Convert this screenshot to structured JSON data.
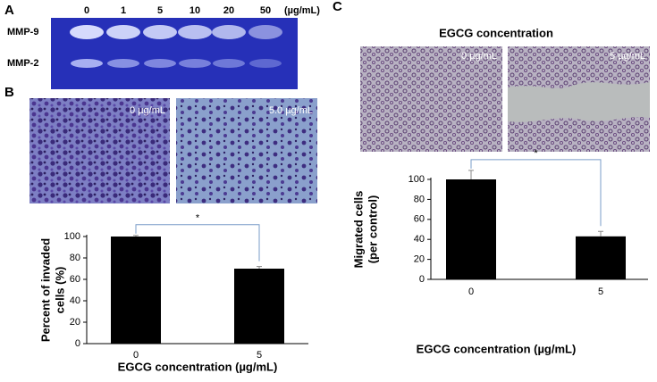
{
  "panel_labels": [
    "A",
    "B",
    "C"
  ],
  "gel": {
    "lanes": [
      "0",
      "1",
      "5",
      "10",
      "20",
      "50"
    ],
    "unit": "(µg/mL)",
    "bands": [
      "MMP-9",
      "MMP-2"
    ]
  },
  "images": {
    "B": [
      "0 µg/mL",
      "5.0 µg/mL"
    ],
    "C": [
      "0 µg/mL",
      "5 µg/mL"
    ]
  },
  "panel_c_title": "EGCG concentration",
  "chart_data": [
    {
      "type": "bar",
      "categories": [
        "0",
        "5"
      ],
      "values": [
        100,
        70
      ],
      "errors": [
        1,
        2
      ],
      "color": "#000000",
      "ylim": [
        0,
        100
      ],
      "yticks": [
        0,
        20,
        40,
        60,
        80,
        100
      ],
      "ylabel_lines": [
        "Percent of invaded",
        "cells (%)"
      ],
      "xlabel": "EGCG concentration (µg/mL)",
      "annotation": "*"
    },
    {
      "type": "bar",
      "categories": [
        "0",
        "5"
      ],
      "values": [
        100,
        43
      ],
      "errors": [
        9,
        5
      ],
      "color": "#000000",
      "ylim": [
        0,
        100
      ],
      "yticks": [
        0,
        20,
        40,
        60,
        80,
        100
      ],
      "ylabel_lines": [
        "Migrated cells",
        "(per control)"
      ],
      "xlabel": "EGCG concentration (µg/mL)",
      "annotation": "*"
    }
  ]
}
